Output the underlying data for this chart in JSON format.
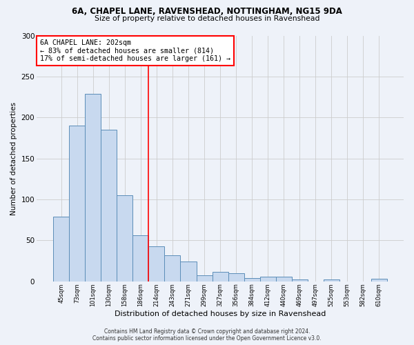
{
  "title_line1": "6A, CHAPEL LANE, RAVENSHEAD, NOTTINGHAM, NG15 9DA",
  "title_line2": "Size of property relative to detached houses in Ravenshead",
  "xlabel": "Distribution of detached houses by size in Ravenshead",
  "ylabel": "Number of detached properties",
  "categories": [
    "45sqm",
    "73sqm",
    "101sqm",
    "130sqm",
    "158sqm",
    "186sqm",
    "214sqm",
    "243sqm",
    "271sqm",
    "299sqm",
    "327sqm",
    "356sqm",
    "384sqm",
    "412sqm",
    "440sqm",
    "469sqm",
    "497sqm",
    "525sqm",
    "553sqm",
    "582sqm",
    "610sqm"
  ],
  "values": [
    79,
    190,
    229,
    185,
    105,
    56,
    43,
    32,
    24,
    7,
    12,
    10,
    4,
    6,
    6,
    2,
    0,
    2,
    0,
    0,
    3
  ],
  "bar_color": "#c8d9ef",
  "bar_edge_color": "#5b8db8",
  "grid_color": "#cccccc",
  "vline_x": 6.0,
  "vline_color": "red",
  "annotation_text": "6A CHAPEL LANE: 202sqm\n← 83% of detached houses are smaller (814)\n17% of semi-detached houses are larger (161) →",
  "annotation_box_color": "white",
  "annotation_box_edge": "red",
  "ylim": [
    0,
    300
  ],
  "yticks": [
    0,
    50,
    100,
    150,
    200,
    250,
    300
  ],
  "footer_line1": "Contains HM Land Registry data © Crown copyright and database right 2024.",
  "footer_line2": "Contains public sector information licensed under the Open Government Licence v3.0.",
  "bg_color": "#eef2f9"
}
